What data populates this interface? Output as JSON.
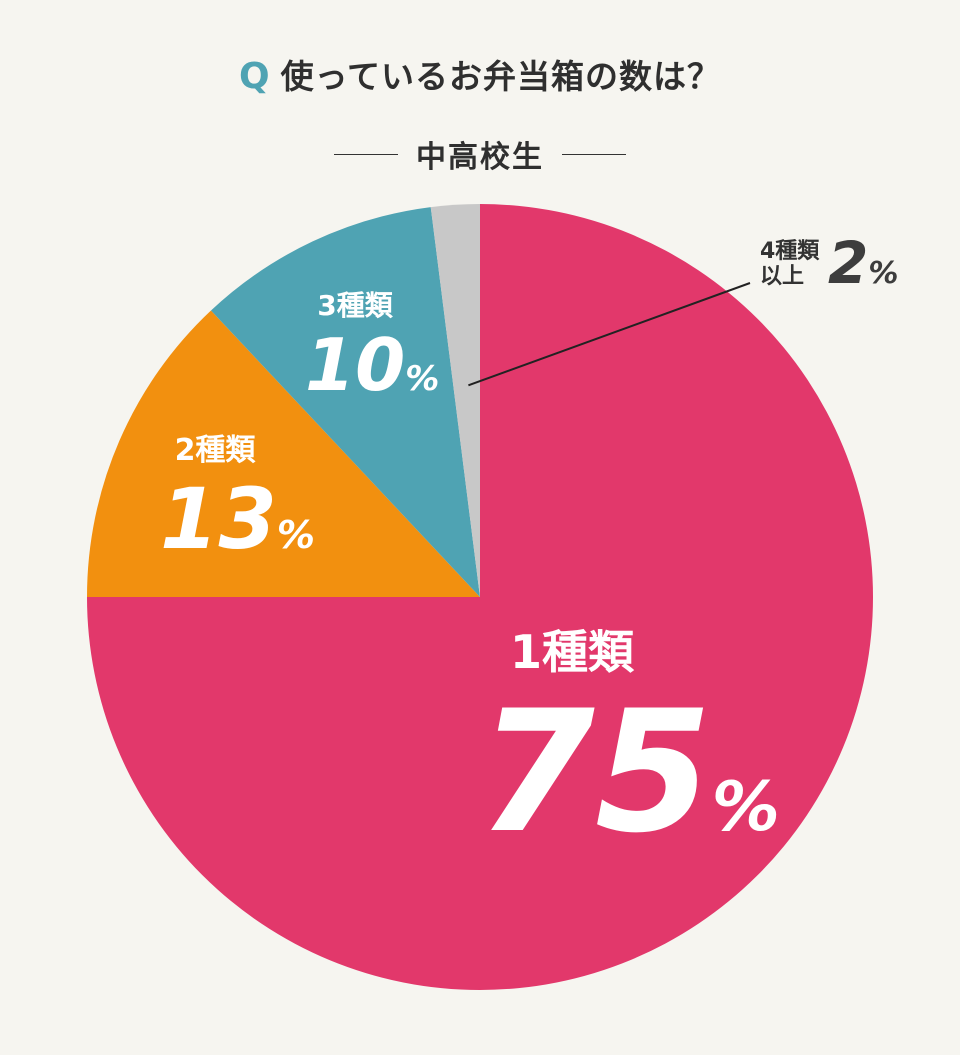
{
  "header": {
    "q_mark": "Q",
    "question": "使っているお弁当箱の数は？",
    "segment": "中高校生"
  },
  "colors": {
    "one": "#e2386b",
    "two": "#f2900f",
    "three": "#4fa3b3",
    "four_plus": "#c8c8c8",
    "background": "#f6f5f0"
  },
  "chart_data": {
    "type": "pie",
    "start_angle": "12 o'clock",
    "direction": "clockwise",
    "slices": [
      {
        "label": "1種類",
        "value": 75,
        "unit": "%",
        "color": "#e2386b"
      },
      {
        "label": "2種類",
        "value": 13,
        "unit": "%",
        "color": "#f2900f"
      },
      {
        "label": "3種類",
        "value": 10,
        "unit": "%",
        "color": "#4fa3b3"
      },
      {
        "label": "4種類以上",
        "label_lines": [
          "4種類",
          "以上"
        ],
        "value": 2,
        "unit": "%",
        "color": "#c8c8c8"
      }
    ]
  }
}
